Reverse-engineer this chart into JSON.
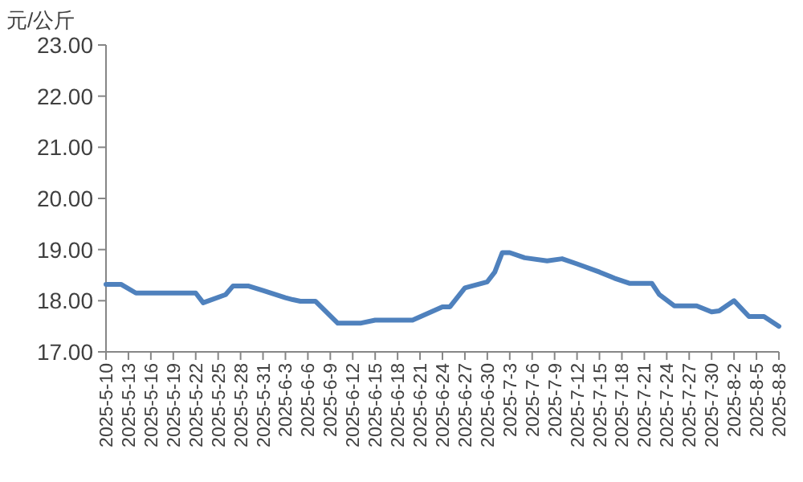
{
  "chart_data": {
    "type": "line",
    "ylabel": "元/公斤",
    "x": [
      "2025-05-10",
      "2025-05-12",
      "2025-05-14",
      "2025-05-22",
      "2025-05-23",
      "2025-05-26",
      "2025-05-27",
      "2025-05-29",
      "2025-05-31",
      "2025-06-03",
      "2025-06-04",
      "2025-06-05",
      "2025-06-07",
      "2025-06-10",
      "2025-06-13",
      "2025-06-15",
      "2025-06-20",
      "2025-06-24",
      "2025-06-25",
      "2025-06-27",
      "2025-06-30",
      "2025-07-01",
      "2025-07-02",
      "2025-07-03",
      "2025-07-05",
      "2025-07-08",
      "2025-07-10",
      "2025-07-12",
      "2025-07-15",
      "2025-07-17",
      "2025-07-19",
      "2025-07-22",
      "2025-07-23",
      "2025-07-25",
      "2025-07-28",
      "2025-07-30",
      "2025-07-31",
      "2025-08-02",
      "2025-08-04",
      "2025-08-06",
      "2025-08-08"
    ],
    "series": [
      {
        "color": "#4f81bd",
        "values": [
          18.32,
          18.32,
          18.15,
          18.15,
          17.96,
          18.12,
          18.29,
          18.29,
          18.2,
          18.06,
          18.02,
          17.99,
          17.99,
          17.56,
          17.56,
          17.62,
          17.62,
          17.88,
          17.88,
          18.25,
          18.37,
          18.56,
          18.94,
          18.94,
          18.84,
          18.78,
          18.82,
          18.72,
          18.56,
          18.44,
          18.34,
          18.34,
          18.12,
          17.9,
          17.9,
          17.78,
          17.8,
          18.0,
          17.69,
          17.69,
          17.5
        ]
      }
    ],
    "xlim": [
      "2025-05-10",
      "2025-08-08"
    ],
    "xticks": [
      {
        "value": "2025-05-10",
        "label": "2025-5-10"
      },
      {
        "value": "2025-05-13",
        "label": "2025-5-13"
      },
      {
        "value": "2025-05-16",
        "label": "2025-5-16"
      },
      {
        "value": "2025-05-19",
        "label": "2025-5-19"
      },
      {
        "value": "2025-05-22",
        "label": "2025-5-22"
      },
      {
        "value": "2025-05-25",
        "label": "2025-5-25"
      },
      {
        "value": "2025-05-28",
        "label": "2025-5-28"
      },
      {
        "value": "2025-05-31",
        "label": "2025-5-31"
      },
      {
        "value": "2025-06-03",
        "label": "2025-6-3"
      },
      {
        "value": "2025-06-06",
        "label": "2025-6-6"
      },
      {
        "value": "2025-06-09",
        "label": "2025-6-9"
      },
      {
        "value": "2025-06-12",
        "label": "2025-6-12"
      },
      {
        "value": "2025-06-15",
        "label": "2025-6-15"
      },
      {
        "value": "2025-06-18",
        "label": "2025-6-18"
      },
      {
        "value": "2025-06-21",
        "label": "2025-6-21"
      },
      {
        "value": "2025-06-24",
        "label": "2025-6-24"
      },
      {
        "value": "2025-06-27",
        "label": "2025-6-27"
      },
      {
        "value": "2025-06-30",
        "label": "2025-6-30"
      },
      {
        "value": "2025-07-03",
        "label": "2025-7-3"
      },
      {
        "value": "2025-07-06",
        "label": "2025-7-6"
      },
      {
        "value": "2025-07-09",
        "label": "2025-7-9"
      },
      {
        "value": "2025-07-12",
        "label": "2025-7-12"
      },
      {
        "value": "2025-07-15",
        "label": "2025-7-15"
      },
      {
        "value": "2025-07-18",
        "label": "2025-7-18"
      },
      {
        "value": "2025-07-21",
        "label": "2025-7-21"
      },
      {
        "value": "2025-07-24",
        "label": "2025-7-24"
      },
      {
        "value": "2025-07-27",
        "label": "2025-7-27"
      },
      {
        "value": "2025-07-30",
        "label": "2025-7-30"
      },
      {
        "value": "2025-08-02",
        "label": "2025-8-2"
      },
      {
        "value": "2025-08-05",
        "label": "2025-8-5"
      },
      {
        "value": "2025-08-08",
        "label": "2025-8-8"
      }
    ],
    "ylim": [
      17,
      23
    ],
    "yticks": [
      {
        "value": 17,
        "label": "17.00"
      },
      {
        "value": 18,
        "label": "18.00"
      },
      {
        "value": 19,
        "label": "19.00"
      },
      {
        "value": 20,
        "label": "20.00"
      },
      {
        "value": 21,
        "label": "21.00"
      },
      {
        "value": 22,
        "label": "22.00"
      },
      {
        "value": 23,
        "label": "23.00"
      }
    ],
    "marker": "none",
    "line_style": "solid"
  }
}
